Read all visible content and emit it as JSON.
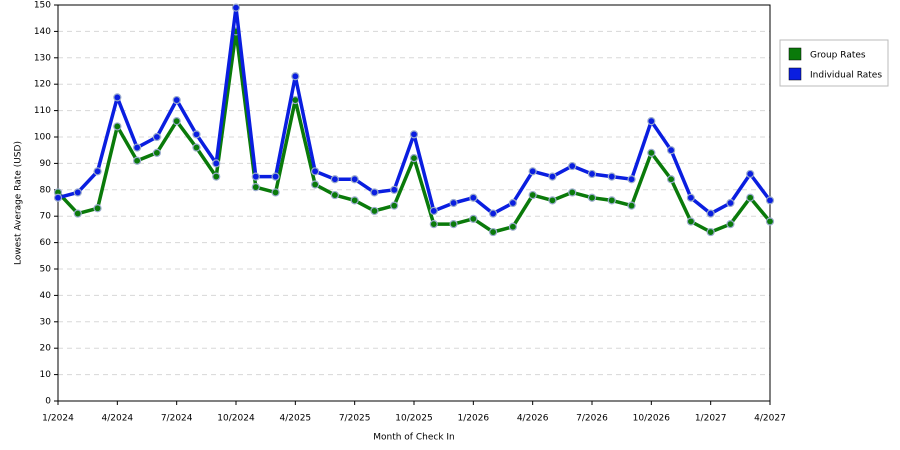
{
  "chart_data": {
    "type": "line",
    "x_label": "Month of Check In",
    "y_label": "Lowest Average Rate (USD)",
    "categories": [
      "1/2024",
      null,
      null,
      "4/2024",
      null,
      null,
      "7/2024",
      null,
      null,
      "10/2024",
      null,
      null,
      "4/2025",
      null,
      null,
      "7/2025",
      null,
      null,
      "10/2025",
      null,
      null,
      "1/2026",
      null,
      null,
      "4/2026",
      null,
      null,
      "7/2026",
      null,
      null,
      "10/2026",
      null,
      null,
      "1/2027",
      null,
      null,
      "4/2027"
    ],
    "series": [
      {
        "name": "Group Rates",
        "color": "#0a7a0a",
        "values": [
          79,
          71,
          73,
          104,
          91,
          94,
          106,
          96,
          85,
          140,
          81,
          79,
          114,
          82,
          78,
          76,
          72,
          74,
          92,
          67,
          67,
          69,
          64,
          66,
          78,
          76,
          79,
          77,
          76,
          74,
          94,
          84,
          68,
          64,
          67,
          77,
          68
        ]
      },
      {
        "name": "Individual Rates",
        "color": "#0a1ee0",
        "values": [
          77,
          79,
          87,
          115,
          96,
          100,
          114,
          101,
          90,
          149,
          85,
          85,
          123,
          87,
          84,
          84,
          79,
          80,
          101,
          72,
          75,
          77,
          71,
          75,
          87,
          85,
          89,
          86,
          85,
          84,
          106,
          95,
          77,
          71,
          75,
          86,
          76
        ]
      }
    ],
    "ylim": [
      0,
      150
    ],
    "yticks": [
      0,
      10,
      20,
      30,
      40,
      50,
      60,
      70,
      80,
      90,
      100,
      110,
      120,
      130,
      140,
      150
    ],
    "grid": true,
    "legend": "right"
  }
}
